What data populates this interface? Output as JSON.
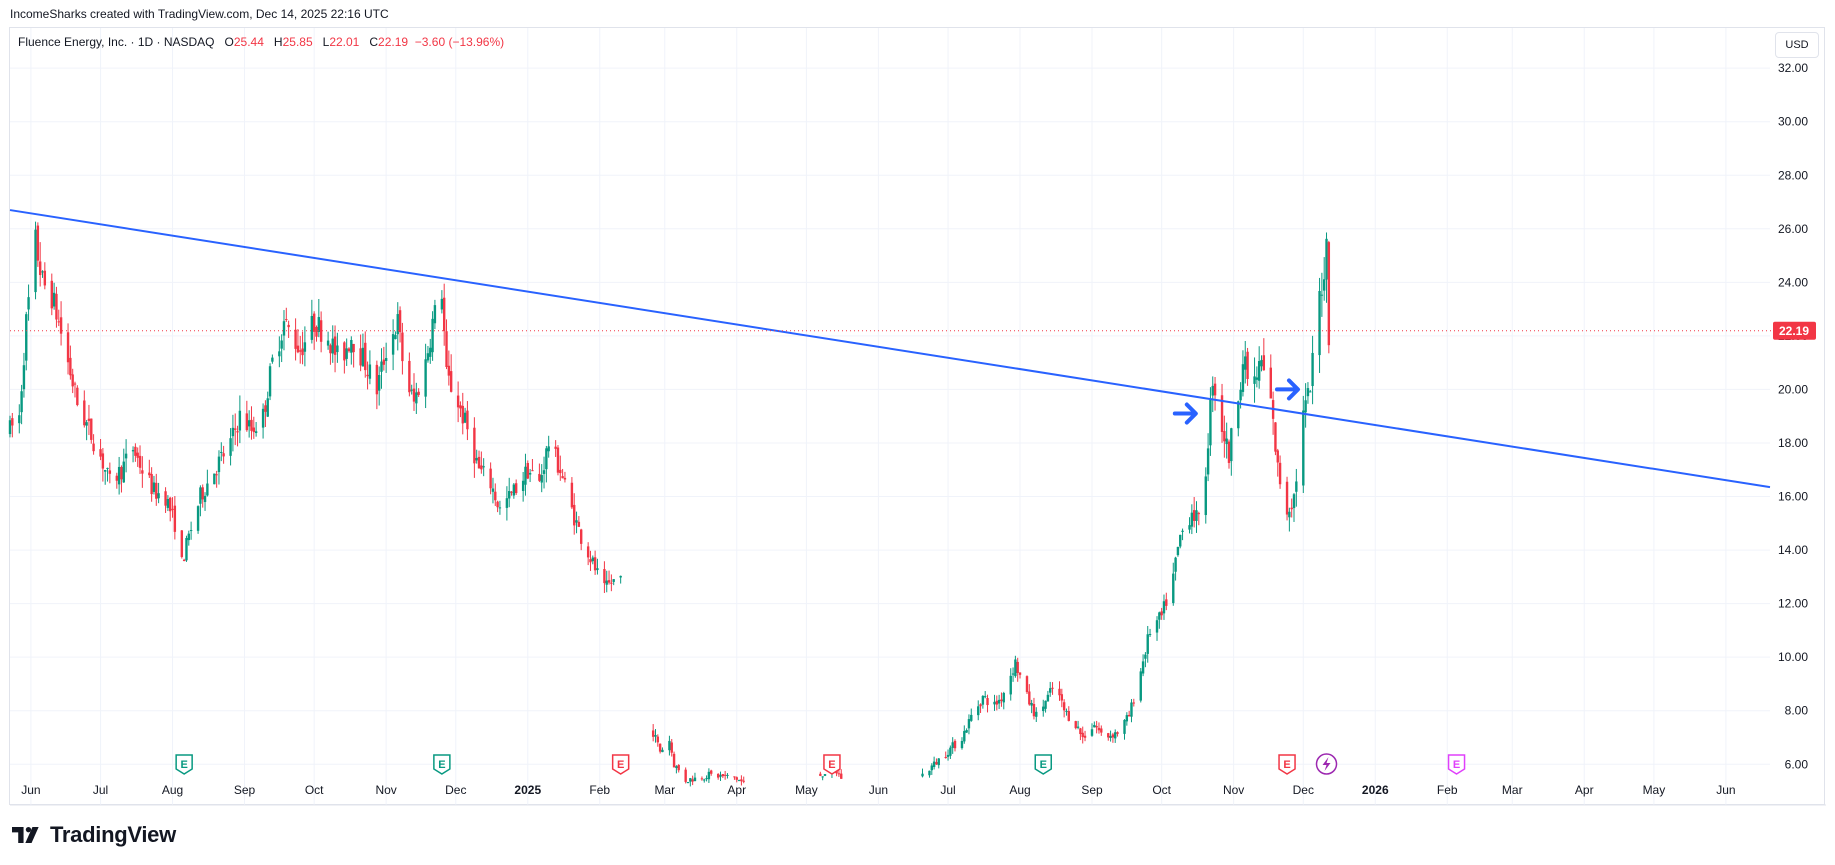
{
  "header": {
    "attribution": "IncomeSharks created with TradingView.com, Dec 14, 2025 22:16 UTC"
  },
  "legend": {
    "symbol": "Fluence Energy, Inc. · 1D · NASDAQ",
    "o_label": "O",
    "o_value": "25.44",
    "h_label": "H",
    "h_value": "25.85",
    "l_label": "L",
    "l_value": "22.01",
    "c_label": "C",
    "c_value": "22.19",
    "change": "−3.60 (−13.96%)"
  },
  "currency_button": "USD",
  "brand": {
    "name": "TradingView"
  },
  "colors": {
    "up": "#089981",
    "down": "#f23645",
    "trendline": "#2962ff",
    "price_label": "#f23645",
    "earnings_green": "#089981",
    "earnings_red": "#f23645",
    "earnings_future": "#e040fb"
  },
  "chart_data": {
    "type": "candlestick",
    "symbol": "FLNC",
    "interval": "1D",
    "y_axis": {
      "ylim": [
        5.3,
        33.5
      ],
      "ticks": [
        "32.00",
        "30.00",
        "28.00",
        "26.00",
        "24.00",
        "22.00",
        "20.00",
        "18.00",
        "16.00",
        "14.00",
        "12.00",
        "10.00",
        "8.00",
        "6.00"
      ],
      "last_price_label": "22.19",
      "last_price": 22.19
    },
    "x_axis": {
      "xlim": [
        "2024-05-23",
        "2026-06-20"
      ],
      "ticks": [
        {
          "label": "Jun",
          "date": "2024-06-01"
        },
        {
          "label": "Jul",
          "date": "2024-07-01"
        },
        {
          "label": "Aug",
          "date": "2024-08-01"
        },
        {
          "label": "Sep",
          "date": "2024-09-01"
        },
        {
          "label": "Oct",
          "date": "2024-10-01"
        },
        {
          "label": "Nov",
          "date": "2024-11-01"
        },
        {
          "label": "Dec",
          "date": "2024-12-01"
        },
        {
          "label": "2025",
          "date": "2025-01-01",
          "bold": true
        },
        {
          "label": "Feb",
          "date": "2025-02-01"
        },
        {
          "label": "Mar",
          "date": "2025-03-01"
        },
        {
          "label": "Apr",
          "date": "2025-04-01"
        },
        {
          "label": "May",
          "date": "2025-05-01"
        },
        {
          "label": "Jun",
          "date": "2025-06-01"
        },
        {
          "label": "Jul",
          "date": "2025-07-01"
        },
        {
          "label": "Aug",
          "date": "2025-08-01"
        },
        {
          "label": "Sep",
          "date": "2025-09-01"
        },
        {
          "label": "Oct",
          "date": "2025-10-01"
        },
        {
          "label": "Nov",
          "date": "2025-11-01"
        },
        {
          "label": "Dec",
          "date": "2025-12-01"
        },
        {
          "label": "2026",
          "date": "2026-01-01",
          "bold": true
        },
        {
          "label": "Feb",
          "date": "2026-02-01"
        },
        {
          "label": "Mar",
          "date": "2026-03-01"
        },
        {
          "label": "Apr",
          "date": "2026-04-01"
        },
        {
          "label": "May",
          "date": "2026-05-01"
        },
        {
          "label": "Jun",
          "date": "2026-06-01"
        }
      ]
    },
    "price_path": [
      [
        "2024-05-23",
        18.5
      ],
      [
        "2024-05-27",
        19.0
      ],
      [
        "2024-05-30",
        22.5
      ],
      [
        "2024-06-03",
        25.5
      ],
      [
        "2024-06-06",
        24.0
      ],
      [
        "2024-06-10",
        23.5
      ],
      [
        "2024-06-13",
        22.5
      ],
      [
        "2024-06-17",
        21.0
      ],
      [
        "2024-06-21",
        19.5
      ],
      [
        "2024-06-26",
        18.5
      ],
      [
        "2024-07-01",
        17.5
      ],
      [
        "2024-07-05",
        16.5
      ],
      [
        "2024-07-10",
        17.0
      ],
      [
        "2024-07-15",
        17.8
      ],
      [
        "2024-07-19",
        17.0
      ],
      [
        "2024-07-24",
        16.2
      ],
      [
        "2024-07-29",
        16.0
      ],
      [
        "2024-08-02",
        15.0
      ],
      [
        "2024-08-05",
        13.5
      ],
      [
        "2024-08-08",
        14.5
      ],
      [
        "2024-08-13",
        16.0
      ],
      [
        "2024-08-19",
        17.0
      ],
      [
        "2024-08-26",
        18.0
      ],
      [
        "2024-08-30",
        19.0
      ],
      [
        "2024-09-04",
        18.5
      ],
      [
        "2024-09-09",
        19.0
      ],
      [
        "2024-09-13",
        21.0
      ],
      [
        "2024-09-18",
        22.5
      ],
      [
        "2024-09-25",
        21.5
      ],
      [
        "2024-10-01",
        22.5
      ],
      [
        "2024-10-07",
        22.0
      ],
      [
        "2024-10-12",
        21.0
      ],
      [
        "2024-10-17",
        22.0
      ],
      [
        "2024-10-23",
        21.0
      ],
      [
        "2024-10-28",
        20.0
      ],
      [
        "2024-11-01",
        21.5
      ],
      [
        "2024-11-06",
        22.5
      ],
      [
        "2024-11-09",
        20.5
      ],
      [
        "2024-11-13",
        19.5
      ],
      [
        "2024-11-18",
        21.0
      ],
      [
        "2024-11-21",
        22.5
      ],
      [
        "2024-11-25",
        23.7
      ],
      [
        "2024-11-27",
        20.5
      ],
      [
        "2024-12-02",
        19.5
      ],
      [
        "2024-12-06",
        18.5
      ],
      [
        "2024-12-11",
        17.0
      ],
      [
        "2024-12-16",
        16.5
      ],
      [
        "2024-12-20",
        15.5
      ],
      [
        "2024-12-26",
        16.2
      ],
      [
        "2025-01-01",
        17.0
      ],
      [
        "2025-01-06",
        16.5
      ],
      [
        "2025-01-10",
        18.0
      ],
      [
        "2025-01-15",
        17.0
      ],
      [
        "2025-01-20",
        15.5
      ],
      [
        "2025-01-24",
        14.5
      ],
      [
        "2025-01-29",
        13.5
      ],
      [
        "2025-02-03",
        12.5
      ],
      [
        "2025-02-06",
        12.8
      ],
      [
        "2025-02-10",
        13.0
      ]
    ],
    "price_path_2": [
      [
        "2025-02-24",
        7.2
      ],
      [
        "2025-02-27",
        6.5
      ],
      [
        "2025-03-03",
        6.9
      ],
      [
        "2025-03-05",
        6.0
      ],
      [
        "2025-03-10",
        5.4
      ],
      [
        "2025-03-20",
        5.6
      ],
      [
        "2025-03-31",
        5.5
      ],
      [
        "2025-04-04",
        5.3
      ]
    ],
    "price_path_3": [
      [
        "2025-05-07",
        5.6
      ],
      [
        "2025-05-12",
        5.9
      ],
      [
        "2025-05-16",
        5.5
      ]
    ],
    "price_path_4": [
      [
        "2025-06-20",
        5.6
      ],
      [
        "2025-06-25",
        6.0
      ],
      [
        "2025-07-01",
        6.5
      ],
      [
        "2025-07-07",
        7.0
      ],
      [
        "2025-07-11",
        7.8
      ],
      [
        "2025-07-16",
        8.5
      ],
      [
        "2025-07-21",
        8.2
      ],
      [
        "2025-07-24",
        8.5
      ],
      [
        "2025-07-30",
        9.8
      ],
      [
        "2025-08-04",
        8.5
      ],
      [
        "2025-08-08",
        7.8
      ],
      [
        "2025-08-13",
        8.5
      ],
      [
        "2025-08-16",
        9.0
      ],
      [
        "2025-08-20",
        8.0
      ],
      [
        "2025-08-25",
        7.5
      ],
      [
        "2025-08-28",
        7.0
      ],
      [
        "2025-09-02",
        7.5
      ],
      [
        "2025-09-06",
        7.0
      ],
      [
        "2025-09-12",
        7.2
      ],
      [
        "2025-09-17",
        7.8
      ],
      [
        "2025-09-22",
        9.5
      ],
      [
        "2025-09-26",
        11.0
      ],
      [
        "2025-10-01",
        11.5
      ],
      [
        "2025-10-06",
        13.0
      ],
      [
        "2025-10-09",
        14.5
      ],
      [
        "2025-10-14",
        15.5
      ],
      [
        "2025-10-17",
        15.0
      ],
      [
        "2025-10-20",
        17.0
      ],
      [
        "2025-10-23",
        20.5
      ],
      [
        "2025-10-26",
        19.0
      ],
      [
        "2025-10-30",
        17.5
      ],
      [
        "2025-11-02",
        19.5
      ],
      [
        "2025-11-05",
        21.0
      ],
      [
        "2025-11-09",
        20.0
      ],
      [
        "2025-11-13",
        21.0
      ],
      [
        "2025-11-17",
        19.5
      ],
      [
        "2025-11-20",
        17.0
      ],
      [
        "2025-11-24",
        15.5
      ],
      [
        "2025-11-27",
        16.0
      ],
      [
        "2025-12-01",
        19.0
      ],
      [
        "2025-12-04",
        20.0
      ],
      [
        "2025-12-06",
        22.0
      ],
      [
        "2025-12-08",
        23.5
      ],
      [
        "2025-12-10",
        24.5
      ],
      [
        "2025-12-11",
        25.44
      ],
      [
        "2025-12-12",
        22.19
      ]
    ],
    "trendline": [
      [
        "2024-05-23",
        26.7
      ],
      [
        "2026-06-20",
        16.35
      ]
    ],
    "arrows": [
      {
        "date": "2025-10-17",
        "price": 19.1
      },
      {
        "date": "2025-11-30",
        "price": 20.0
      }
    ],
    "earnings_markers": [
      {
        "date": "2024-08-06",
        "label": "E",
        "status": "beat"
      },
      {
        "date": "2024-11-25",
        "label": "E",
        "status": "beat"
      },
      {
        "date": "2025-02-10",
        "label": "E",
        "status": "miss"
      },
      {
        "date": "2025-05-12",
        "label": "E",
        "status": "miss"
      },
      {
        "date": "2025-08-11",
        "label": "E",
        "status": "beat"
      },
      {
        "date": "2025-11-24",
        "label": "E",
        "status": "miss"
      },
      {
        "date": "2026-02-05",
        "label": "E",
        "status": "upcoming"
      }
    ],
    "events": [
      {
        "date": "2025-12-11",
        "type": "dividend-split",
        "icon": "lightning-icon"
      }
    ],
    "grid": true
  }
}
